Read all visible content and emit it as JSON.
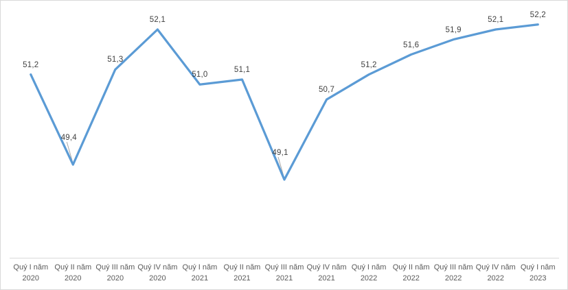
{
  "chart_data": {
    "type": "line",
    "title": "",
    "xlabel": "",
    "ylabel": "",
    "categories": [
      "Quý I năm 2020",
      "Quý II năm 2020",
      "Quý III năm 2020",
      "Quý IV năm 2020",
      "Quý I năm 2021",
      "Quý II năm 2021",
      "Quý III năm 2021",
      "Quý IV năm 2021",
      "Quý I năm 2022",
      "Quý II năm 2022",
      "Quý III năm 2022",
      "Quý IV năm 2022",
      "Quý I năm 2023"
    ],
    "series": [
      {
        "name": "series-1",
        "values": [
          51.2,
          49.4,
          51.3,
          52.1,
          51.0,
          51.1,
          49.1,
          50.7,
          51.2,
          51.6,
          51.9,
          52.1,
          52.2
        ],
        "point_labels": [
          "51,2",
          "49,4",
          "51,3",
          "52,1",
          "51,0",
          "51,1",
          "49,1",
          "50,7",
          "51,2",
          "51,6",
          "51,9",
          "52,1",
          "52,2"
        ]
      }
    ],
    "callout_point_indices": [
      1,
      6
    ],
    "ylim": [
      47.5,
      52.5
    ],
    "grid": false,
    "legend": "none",
    "colors": {
      "line": "#5b9bd5",
      "axis_line": "#d9d9d9",
      "frame_border": "#d9d9d9",
      "data_label_text": "#404040",
      "tick_label_text": "#595959",
      "leader_line": "#a6a6a6",
      "background": "#ffffff"
    }
  }
}
